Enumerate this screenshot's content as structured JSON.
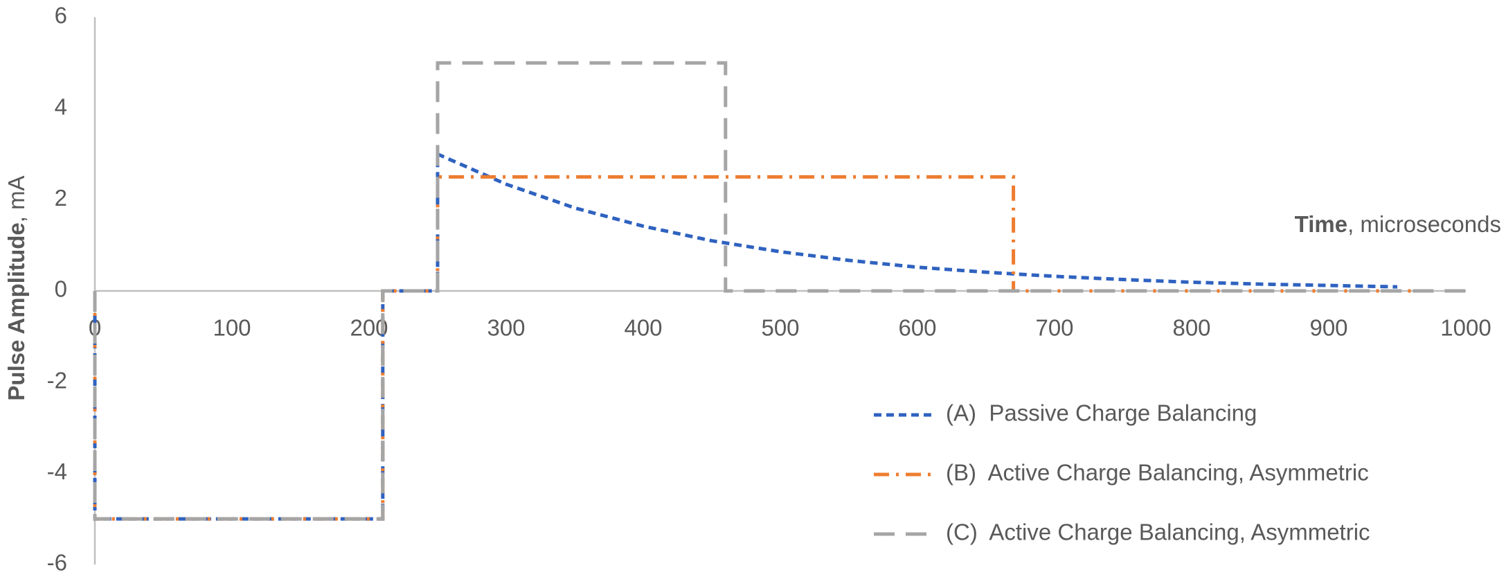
{
  "chart_data": {
    "type": "line",
    "xlabel": {
      "bold": "Time",
      "rest": ", microseconds"
    },
    "ylabel": {
      "bold": "Pulse Amplitude",
      "rest": ", mA"
    },
    "xlim": [
      0,
      1000
    ],
    "ylim": [
      -6,
      6
    ],
    "xticks": [
      0,
      100,
      200,
      300,
      400,
      500,
      600,
      700,
      800,
      900,
      1000
    ],
    "yticks": [
      -6,
      -4,
      -2,
      0,
      2,
      4,
      6
    ],
    "grid": false,
    "legend": "lower right",
    "series": [
      {
        "name": "(A)  Passive Charge Balancing",
        "color": "#2f62c0",
        "x": [
          0,
          0,
          210,
          210,
          250,
          250,
          300,
          350,
          400,
          450,
          500,
          550,
          600,
          650,
          700,
          750,
          800,
          850,
          900,
          950
        ],
        "values": [
          0,
          -5,
          -5,
          0,
          0,
          3,
          2.34,
          1.82,
          1.42,
          1.1,
          0.86,
          0.67,
          0.52,
          0.41,
          0.32,
          0.25,
          0.19,
          0.15,
          0.12,
          0.09
        ]
      },
      {
        "name": "(B)  Active Charge Balancing, Asymmetric",
        "color": "#ed7d31",
        "x": [
          0,
          0,
          210,
          210,
          250,
          250,
          670,
          670,
          980
        ],
        "values": [
          0,
          -5,
          -5,
          0,
          0,
          2.5,
          2.5,
          0,
          0
        ]
      },
      {
        "name": "(C)  Active Charge Balancing, Asymmetric",
        "color": "#a5a5a5",
        "x": [
          0,
          0,
          210,
          210,
          250,
          250,
          460,
          460,
          1000
        ],
        "values": [
          0,
          -5,
          -5,
          0,
          0,
          5,
          5,
          0,
          0
        ]
      }
    ]
  }
}
